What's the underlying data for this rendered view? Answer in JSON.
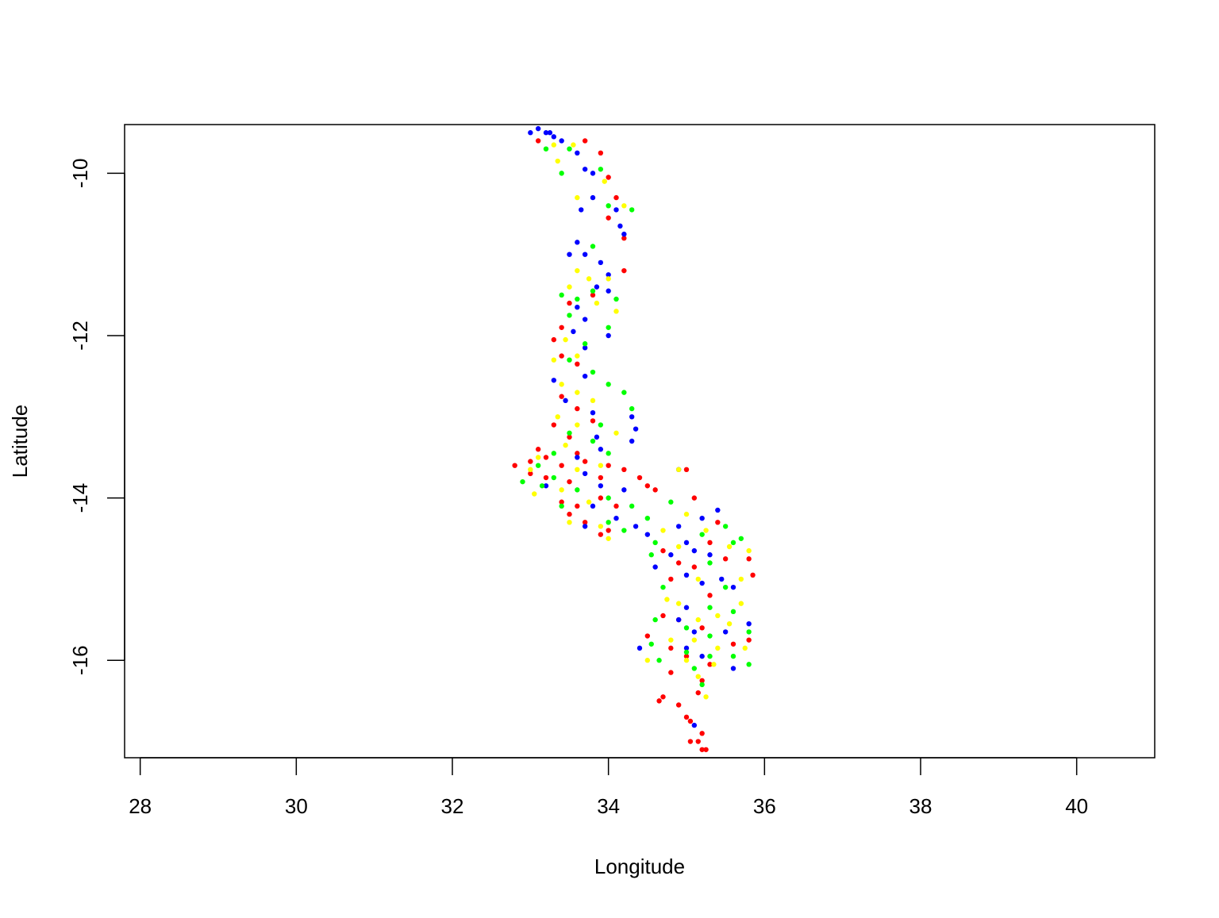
{
  "chart_data": {
    "type": "scatter",
    "title": "",
    "xlabel": "Longitude",
    "ylabel": "Latitude",
    "xlim": [
      27.8,
      41.0
    ],
    "ylim": [
      -17.2,
      -9.4
    ],
    "xticks": [
      28,
      30,
      32,
      34,
      36,
      38,
      40
    ],
    "yticks": [
      -10,
      -12,
      -14,
      -16
    ],
    "xtick_labels": [
      "28",
      "30",
      "32",
      "34",
      "36",
      "38",
      "40"
    ],
    "ytick_labels": [
      "-10",
      "-12",
      "-14",
      "-16"
    ],
    "grid": false,
    "legend": "none",
    "marker": "filled circle",
    "series": [
      {
        "color": "#ff0000",
        "points": [
          [
            33.1,
            -9.6
          ],
          [
            33.7,
            -9.6
          ],
          [
            33.9,
            -9.75
          ],
          [
            34.0,
            -10.05
          ],
          [
            34.1,
            -10.3
          ],
          [
            34.0,
            -10.55
          ],
          [
            34.2,
            -10.8
          ],
          [
            34.2,
            -11.2
          ],
          [
            33.8,
            -11.5
          ],
          [
            33.5,
            -11.6
          ],
          [
            33.4,
            -11.9
          ],
          [
            33.3,
            -12.05
          ],
          [
            33.4,
            -12.25
          ],
          [
            33.6,
            -12.35
          ],
          [
            33.4,
            -12.75
          ],
          [
            33.6,
            -12.9
          ],
          [
            33.8,
            -13.05
          ],
          [
            33.3,
            -13.1
          ],
          [
            33.5,
            -13.25
          ],
          [
            33.1,
            -13.4
          ],
          [
            33.6,
            -13.45
          ],
          [
            32.8,
            -13.6
          ],
          [
            33.0,
            -13.55
          ],
          [
            33.2,
            -13.5
          ],
          [
            33.4,
            -13.6
          ],
          [
            33.7,
            -13.55
          ],
          [
            34.0,
            -13.6
          ],
          [
            33.2,
            -13.75
          ],
          [
            33.5,
            -13.8
          ],
          [
            33.9,
            -13.75
          ],
          [
            34.2,
            -13.65
          ],
          [
            34.4,
            -13.75
          ],
          [
            34.5,
            -13.85
          ],
          [
            33.4,
            -14.05
          ],
          [
            33.6,
            -14.1
          ],
          [
            33.9,
            -14.0
          ],
          [
            34.1,
            -14.1
          ],
          [
            33.7,
            -14.3
          ],
          [
            34.0,
            -14.4
          ],
          [
            33.9,
            -14.45
          ],
          [
            35.0,
            -13.65
          ],
          [
            35.1,
            -14.0
          ],
          [
            35.4,
            -14.3
          ],
          [
            35.3,
            -14.55
          ],
          [
            34.7,
            -14.65
          ],
          [
            34.9,
            -14.8
          ],
          [
            35.1,
            -14.85
          ],
          [
            35.5,
            -14.75
          ],
          [
            35.8,
            -14.75
          ],
          [
            35.85,
            -14.95
          ],
          [
            34.8,
            -15.0
          ],
          [
            35.3,
            -15.2
          ],
          [
            34.7,
            -15.45
          ],
          [
            34.9,
            -15.5
          ],
          [
            35.2,
            -15.6
          ],
          [
            34.5,
            -15.7
          ],
          [
            34.8,
            -15.85
          ],
          [
            35.0,
            -15.95
          ],
          [
            35.3,
            -16.05
          ],
          [
            35.6,
            -15.8
          ],
          [
            35.8,
            -15.75
          ],
          [
            35.2,
            -16.25
          ],
          [
            35.15,
            -16.4
          ],
          [
            34.8,
            -16.15
          ],
          [
            34.7,
            -16.45
          ],
          [
            34.65,
            -16.5
          ],
          [
            34.9,
            -16.55
          ],
          [
            35.0,
            -16.7
          ],
          [
            35.05,
            -16.75
          ],
          [
            35.2,
            -16.9
          ],
          [
            35.15,
            -17.0
          ],
          [
            35.05,
            -17.0
          ],
          [
            35.2,
            -17.1
          ],
          [
            35.25,
            -17.1
          ],
          [
            33.5,
            -14.2
          ],
          [
            34.6,
            -13.9
          ],
          [
            33.0,
            -13.7
          ]
        ]
      },
      {
        "color": "#0000ff",
        "points": [
          [
            33.0,
            -9.5
          ],
          [
            33.1,
            -9.45
          ],
          [
            33.2,
            -9.5
          ],
          [
            33.3,
            -9.55
          ],
          [
            33.4,
            -9.6
          ],
          [
            33.6,
            -9.75
          ],
          [
            33.7,
            -9.95
          ],
          [
            33.8,
            -10.0
          ],
          [
            33.8,
            -10.3
          ],
          [
            33.65,
            -10.45
          ],
          [
            34.1,
            -10.45
          ],
          [
            34.15,
            -10.65
          ],
          [
            34.2,
            -10.75
          ],
          [
            33.6,
            -10.85
          ],
          [
            33.7,
            -11.0
          ],
          [
            33.9,
            -11.1
          ],
          [
            34.0,
            -11.25
          ],
          [
            33.85,
            -11.4
          ],
          [
            34.0,
            -11.45
          ],
          [
            33.6,
            -11.65
          ],
          [
            33.7,
            -11.8
          ],
          [
            33.55,
            -11.95
          ],
          [
            34.0,
            -12.0
          ],
          [
            33.7,
            -12.15
          ],
          [
            33.7,
            -12.5
          ],
          [
            33.3,
            -12.55
          ],
          [
            33.45,
            -12.8
          ],
          [
            33.8,
            -12.95
          ],
          [
            34.3,
            -13.0
          ],
          [
            34.35,
            -13.15
          ],
          [
            34.3,
            -13.3
          ],
          [
            33.9,
            -13.4
          ],
          [
            33.6,
            -13.5
          ],
          [
            33.7,
            -13.7
          ],
          [
            33.2,
            -13.85
          ],
          [
            33.9,
            -13.85
          ],
          [
            34.2,
            -13.9
          ],
          [
            33.8,
            -14.1
          ],
          [
            34.1,
            -14.25
          ],
          [
            33.7,
            -14.35
          ],
          [
            34.35,
            -14.35
          ],
          [
            34.5,
            -14.45
          ],
          [
            34.9,
            -14.35
          ],
          [
            35.2,
            -14.25
          ],
          [
            35.4,
            -14.15
          ],
          [
            35.0,
            -14.55
          ],
          [
            34.8,
            -14.7
          ],
          [
            35.1,
            -14.65
          ],
          [
            34.6,
            -14.85
          ],
          [
            35.0,
            -14.95
          ],
          [
            35.2,
            -15.05
          ],
          [
            35.45,
            -15.0
          ],
          [
            35.6,
            -15.1
          ],
          [
            35.0,
            -15.35
          ],
          [
            34.9,
            -15.5
          ],
          [
            35.1,
            -15.65
          ],
          [
            35.5,
            -15.65
          ],
          [
            35.8,
            -15.55
          ],
          [
            35.0,
            -15.85
          ],
          [
            35.2,
            -15.95
          ],
          [
            35.6,
            -16.1
          ],
          [
            34.4,
            -15.85
          ],
          [
            35.1,
            -16.8
          ],
          [
            34.9,
            -13.65
          ],
          [
            33.25,
            -9.5
          ],
          [
            33.5,
            -11.0
          ],
          [
            33.85,
            -13.25
          ],
          [
            35.3,
            -14.7
          ]
        ]
      },
      {
        "color": "#00ff00",
        "points": [
          [
            33.2,
            -9.7
          ],
          [
            33.5,
            -9.7
          ],
          [
            33.4,
            -10.0
          ],
          [
            33.9,
            -9.95
          ],
          [
            34.0,
            -10.4
          ],
          [
            34.3,
            -10.45
          ],
          [
            33.8,
            -10.9
          ],
          [
            33.4,
            -11.5
          ],
          [
            33.6,
            -11.55
          ],
          [
            33.8,
            -11.45
          ],
          [
            34.1,
            -11.55
          ],
          [
            33.5,
            -11.75
          ],
          [
            34.0,
            -11.9
          ],
          [
            33.7,
            -12.1
          ],
          [
            33.5,
            -12.3
          ],
          [
            33.8,
            -12.45
          ],
          [
            34.0,
            -12.6
          ],
          [
            34.2,
            -12.7
          ],
          [
            34.3,
            -12.9
          ],
          [
            33.9,
            -13.1
          ],
          [
            33.5,
            -13.2
          ],
          [
            33.8,
            -13.3
          ],
          [
            34.0,
            -13.45
          ],
          [
            33.3,
            -13.45
          ],
          [
            33.1,
            -13.6
          ],
          [
            32.9,
            -13.8
          ],
          [
            33.3,
            -13.75
          ],
          [
            33.6,
            -13.9
          ],
          [
            34.0,
            -14.0
          ],
          [
            34.3,
            -14.1
          ],
          [
            34.0,
            -14.3
          ],
          [
            34.2,
            -14.4
          ],
          [
            33.4,
            -14.1
          ],
          [
            34.5,
            -14.25
          ],
          [
            34.8,
            -14.05
          ],
          [
            34.6,
            -14.55
          ],
          [
            34.55,
            -14.7
          ],
          [
            35.2,
            -14.45
          ],
          [
            35.5,
            -14.35
          ],
          [
            35.6,
            -14.55
          ],
          [
            35.3,
            -14.8
          ],
          [
            35.5,
            -15.1
          ],
          [
            34.7,
            -15.1
          ],
          [
            35.3,
            -15.35
          ],
          [
            34.6,
            -15.5
          ],
          [
            35.0,
            -15.6
          ],
          [
            35.3,
            -15.7
          ],
          [
            35.6,
            -15.4
          ],
          [
            35.8,
            -15.65
          ],
          [
            34.55,
            -15.8
          ],
          [
            35.0,
            -15.9
          ],
          [
            35.3,
            -15.95
          ],
          [
            35.6,
            -15.95
          ],
          [
            35.8,
            -16.05
          ],
          [
            35.1,
            -16.1
          ],
          [
            35.2,
            -16.3
          ],
          [
            33.15,
            -13.85
          ],
          [
            34.65,
            -16.0
          ],
          [
            35.7,
            -14.5
          ]
        ]
      },
      {
        "color": "#ffff00",
        "points": [
          [
            33.3,
            -9.65
          ],
          [
            33.55,
            -9.65
          ],
          [
            33.35,
            -9.85
          ],
          [
            33.6,
            -10.3
          ],
          [
            33.95,
            -10.1
          ],
          [
            34.2,
            -10.4
          ],
          [
            33.6,
            -11.2
          ],
          [
            33.75,
            -11.3
          ],
          [
            34.0,
            -11.3
          ],
          [
            33.5,
            -11.4
          ],
          [
            34.1,
            -11.7
          ],
          [
            33.85,
            -11.6
          ],
          [
            33.45,
            -12.05
          ],
          [
            33.6,
            -12.25
          ],
          [
            33.3,
            -12.3
          ],
          [
            33.4,
            -12.6
          ],
          [
            33.6,
            -12.7
          ],
          [
            33.8,
            -12.8
          ],
          [
            33.35,
            -13.0
          ],
          [
            33.6,
            -13.1
          ],
          [
            34.1,
            -13.2
          ],
          [
            33.45,
            -13.35
          ],
          [
            33.1,
            -13.5
          ],
          [
            33.0,
            -13.65
          ],
          [
            33.6,
            -13.65
          ],
          [
            33.9,
            -13.6
          ],
          [
            33.05,
            -13.95
          ],
          [
            33.4,
            -13.9
          ],
          [
            33.75,
            -14.05
          ],
          [
            33.5,
            -14.3
          ],
          [
            33.9,
            -14.35
          ],
          [
            34.0,
            -14.5
          ],
          [
            34.7,
            -14.4
          ],
          [
            35.0,
            -14.2
          ],
          [
            35.25,
            -14.4
          ],
          [
            35.55,
            -14.6
          ],
          [
            35.8,
            -14.65
          ],
          [
            34.9,
            -14.6
          ],
          [
            35.15,
            -15.0
          ],
          [
            34.75,
            -15.25
          ],
          [
            35.4,
            -15.45
          ],
          [
            35.7,
            -15.3
          ],
          [
            34.9,
            -15.3
          ],
          [
            35.15,
            -15.5
          ],
          [
            35.55,
            -15.55
          ],
          [
            34.8,
            -15.75
          ],
          [
            35.1,
            -15.75
          ],
          [
            35.4,
            -15.85
          ],
          [
            35.75,
            -15.85
          ],
          [
            35.0,
            -16.0
          ],
          [
            35.35,
            -16.05
          ],
          [
            35.15,
            -16.2
          ],
          [
            35.25,
            -16.45
          ],
          [
            34.9,
            -13.65
          ],
          [
            34.5,
            -16.0
          ],
          [
            35.7,
            -15.0
          ]
        ]
      }
    ]
  }
}
